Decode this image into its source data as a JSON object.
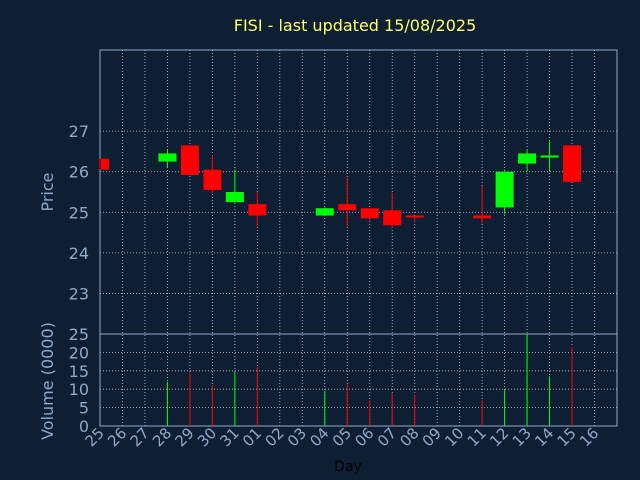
{
  "chart_data": {
    "type": "candlestick",
    "title": "FISI - last updated 15/08/2025",
    "price_axis": {
      "label": "Price",
      "ticks": [
        23,
        24,
        25,
        26,
        27
      ],
      "ylim": [
        22,
        29
      ]
    },
    "volume_axis": {
      "label": "Volume (0000)",
      "ticks": [
        0,
        5,
        10,
        15,
        20,
        25
      ],
      "ylim": [
        0,
        25
      ]
    },
    "x_axis": {
      "label": "Day"
    },
    "grid": true,
    "colors": {
      "up": "#00ff00",
      "down": "#ff0000",
      "grid": "#ffffff",
      "axis": "#8fa9c9",
      "title": "#ffff66",
      "background": "#0f1f33"
    },
    "x": [
      "25",
      "26",
      "27",
      "28",
      "29",
      "30",
      "31",
      "01",
      "02",
      "03",
      "04",
      "05",
      "06",
      "07",
      "08",
      "09",
      "10",
      "11",
      "12",
      "13",
      "14",
      "15",
      "16"
    ],
    "candles": [
      {
        "day": "25",
        "open": 26.32,
        "high": 26.32,
        "low": 26.05,
        "close": 26.05,
        "volume": null
      },
      {
        "day": "28",
        "open": 26.25,
        "high": 26.55,
        "low": 26.1,
        "close": 26.45,
        "volume": 12
      },
      {
        "day": "29",
        "open": 26.65,
        "high": 26.65,
        "low": 25.9,
        "close": 25.92,
        "volume": 14.5
      },
      {
        "day": "30",
        "open": 26.05,
        "high": 26.4,
        "low": 25.48,
        "close": 25.55,
        "volume": 11
      },
      {
        "day": "31",
        "open": 25.25,
        "high": 26.05,
        "low": 25.25,
        "close": 25.5,
        "volume": 15
      },
      {
        "day": "01",
        "open": 25.2,
        "high": 25.5,
        "low": 24.65,
        "close": 24.92,
        "volume": 16
      },
      {
        "day": "04",
        "open": 24.92,
        "high": 25.12,
        "low": 24.92,
        "close": 25.1,
        "volume": 9.5
      },
      {
        "day": "05",
        "open": 25.2,
        "high": 25.85,
        "low": 24.65,
        "close": 25.05,
        "volume": 11.5
      },
      {
        "day": "06",
        "open": 25.1,
        "high": 25.1,
        "low": 24.82,
        "close": 24.85,
        "volume": 7
      },
      {
        "day": "07",
        "open": 25.05,
        "high": 25.48,
        "low": 24.6,
        "close": 24.68,
        "volume": 9
      },
      {
        "day": "08",
        "open": 24.92,
        "high": 24.92,
        "low": 24.75,
        "close": 24.88,
        "volume": 8.5
      },
      {
        "day": "11",
        "open": 24.92,
        "high": 25.65,
        "low": 24.72,
        "close": 24.85,
        "volume": 7
      },
      {
        "day": "12",
        "open": 25.12,
        "high": 26.0,
        "low": 24.95,
        "close": 26.0,
        "volume": 10
      },
      {
        "day": "13",
        "open": 26.2,
        "high": 26.55,
        "low": 26.0,
        "close": 26.45,
        "volume": 25
      },
      {
        "day": "14",
        "open": 26.35,
        "high": 26.75,
        "low": 26.0,
        "close": 26.4,
        "volume": 13.5
      },
      {
        "day": "15",
        "open": 26.65,
        "high": 26.65,
        "low": 25.75,
        "close": 25.75,
        "volume": 21.5
      }
    ]
  }
}
